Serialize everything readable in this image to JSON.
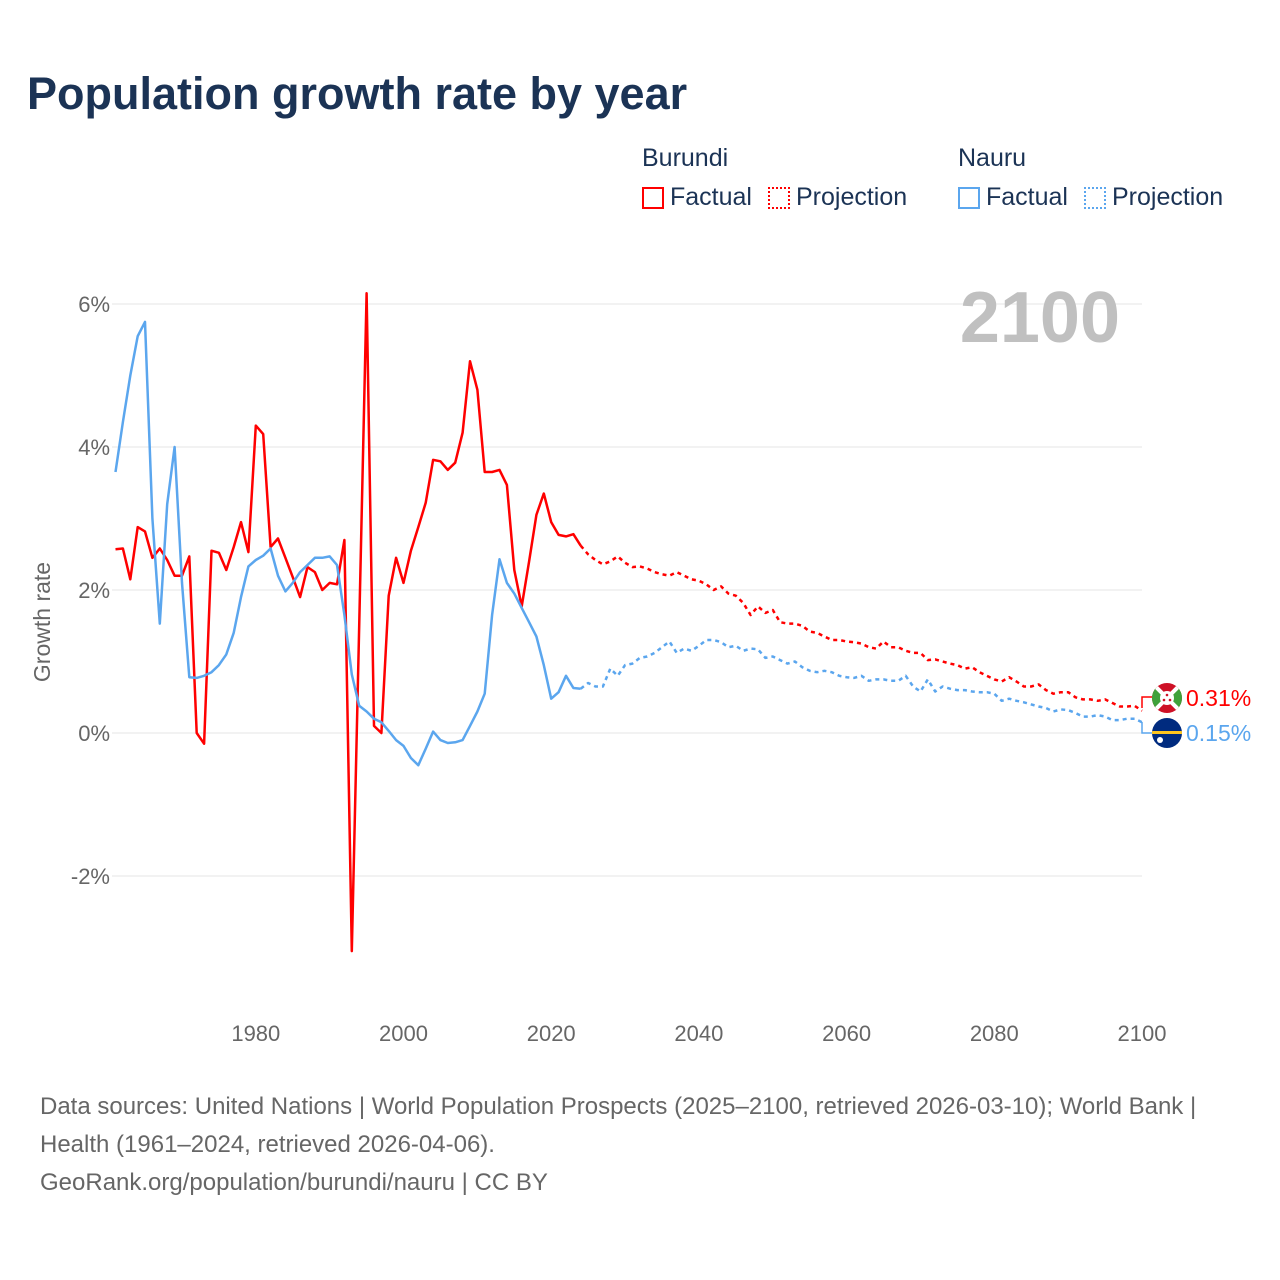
{
  "title": "Population growth rate by year",
  "legend": [
    {
      "group": "Burundi",
      "factual": "Factual",
      "projection": "Projection",
      "color": "#ff0000"
    },
    {
      "group": "Nauru",
      "factual": "Factual",
      "projection": "Projection",
      "color": "#5ba6ee"
    }
  ],
  "year_watermark": "2100",
  "end_labels": {
    "burundi": "0.31%",
    "nauru": "0.15%"
  },
  "footer": {
    "sources": "Data sources: United Nations | World Population Prospects (2025–2100, retrieved 2026-03-10); World Bank | Health (1961–2024, retrieved 2026-04-06).",
    "credit": "GeoRank.org/population/burundi/nauru | CC BY"
  },
  "chart_data": {
    "type": "line",
    "title": "Population growth rate by year",
    "xlabel": "",
    "ylabel": "Growth rate",
    "xlim": [
      1961,
      2100
    ],
    "ylim": [
      -3.5,
      6.5
    ],
    "x_ticks": [
      1980,
      2000,
      2020,
      2040,
      2060,
      2080,
      2100
    ],
    "x_tick_labels": [
      "1980",
      "2000",
      "2020",
      "2040",
      "2060",
      "2080",
      "2100"
    ],
    "y_ticks": [
      6,
      4,
      2,
      0,
      -2
    ],
    "y_tick_labels": [
      "6%",
      "4%",
      "2%",
      "0%",
      "-2%"
    ],
    "grid": true,
    "legend_position": "top-right",
    "series": [
      {
        "name": "Burundi Factual",
        "style": "solid",
        "color": "#ff0000",
        "start_year": 1961,
        "values": [
          2.57,
          2.58,
          2.15,
          2.88,
          2.82,
          2.45,
          2.58,
          2.42,
          2.2,
          2.2,
          2.47,
          0.0,
          -0.15,
          2.55,
          2.52,
          2.28,
          2.6,
          2.95,
          2.53,
          4.3,
          4.18,
          2.6,
          2.72,
          2.45,
          2.18,
          1.9,
          2.32,
          2.25,
          2.0,
          2.1,
          2.08,
          2.7,
          -3.05,
          1.5,
          6.15,
          0.1,
          0.0,
          1.92,
          2.45,
          2.1,
          2.55,
          2.88,
          3.22,
          3.82,
          3.8,
          3.68,
          3.78,
          4.2,
          5.2,
          4.8,
          3.65,
          3.65,
          3.68,
          3.47,
          2.28,
          1.77,
          2.4,
          3.05,
          3.35,
          2.95,
          2.77,
          2.75,
          2.78,
          2.62
        ]
      },
      {
        "name": "Burundi Projection",
        "style": "dotted",
        "color": "#ff0000",
        "start_year": 2024,
        "values": [
          2.62,
          2.5,
          2.42,
          2.36,
          2.4,
          2.47,
          2.38,
          2.32,
          2.33,
          2.3,
          2.25,
          2.22,
          2.2,
          2.25,
          2.2,
          2.15,
          2.13,
          2.08,
          2.0,
          2.05,
          1.95,
          1.92,
          1.82,
          1.65,
          1.77,
          1.68,
          1.72,
          1.55,
          1.53,
          1.53,
          1.5,
          1.42,
          1.4,
          1.35,
          1.3,
          1.3,
          1.28,
          1.27,
          1.25,
          1.2,
          1.18,
          1.28,
          1.2,
          1.2,
          1.15,
          1.12,
          1.12,
          1.02,
          1.03,
          1.0,
          0.97,
          0.95,
          0.9,
          0.92,
          0.85,
          0.8,
          0.75,
          0.72,
          0.78,
          0.72,
          0.65,
          0.65,
          0.68,
          0.6,
          0.55,
          0.57,
          0.57,
          0.5,
          0.47,
          0.47,
          0.45,
          0.47,
          0.42,
          0.37,
          0.37,
          0.38,
          0.31
        ]
      },
      {
        "name": "Nauru Factual",
        "style": "solid",
        "color": "#5ba6ee",
        "start_year": 1961,
        "values": [
          3.65,
          4.35,
          5.0,
          5.55,
          5.75,
          3.0,
          1.53,
          3.2,
          4.0,
          2.1,
          0.78,
          0.77,
          0.8,
          0.85,
          0.95,
          1.1,
          1.4,
          1.9,
          2.33,
          2.42,
          2.48,
          2.58,
          2.2,
          1.98,
          2.1,
          2.25,
          2.35,
          2.45,
          2.45,
          2.47,
          2.35,
          1.65,
          0.82,
          0.38,
          0.3,
          0.2,
          0.15,
          0.03,
          -0.1,
          -0.18,
          -0.35,
          -0.45,
          -0.22,
          0.02,
          -0.1,
          -0.14,
          -0.13,
          -0.1,
          0.1,
          0.3,
          0.55,
          1.65,
          2.43,
          2.1,
          1.95,
          1.75,
          1.55,
          1.35,
          0.95,
          0.48,
          0.57,
          0.8,
          0.63,
          0.62
        ]
      },
      {
        "name": "Nauru Projection",
        "style": "dotted",
        "color": "#5ba6ee",
        "start_year": 2024,
        "values": [
          0.62,
          0.7,
          0.65,
          0.65,
          0.9,
          0.8,
          0.95,
          0.97,
          1.05,
          1.07,
          1.12,
          1.2,
          1.28,
          1.12,
          1.18,
          1.15,
          1.22,
          1.3,
          1.3,
          1.27,
          1.2,
          1.22,
          1.15,
          1.18,
          1.17,
          1.05,
          1.07,
          1.02,
          0.97,
          1.0,
          0.92,
          0.87,
          0.85,
          0.87,
          0.85,
          0.8,
          0.78,
          0.77,
          0.8,
          0.73,
          0.75,
          0.75,
          0.73,
          0.73,
          0.8,
          0.65,
          0.58,
          0.75,
          0.58,
          0.65,
          0.62,
          0.6,
          0.6,
          0.58,
          0.57,
          0.57,
          0.55,
          0.45,
          0.48,
          0.45,
          0.43,
          0.4,
          0.37,
          0.35,
          0.3,
          0.33,
          0.32,
          0.28,
          0.23,
          0.23,
          0.25,
          0.23,
          0.18,
          0.18,
          0.2,
          0.2,
          0.15
        ]
      }
    ]
  }
}
